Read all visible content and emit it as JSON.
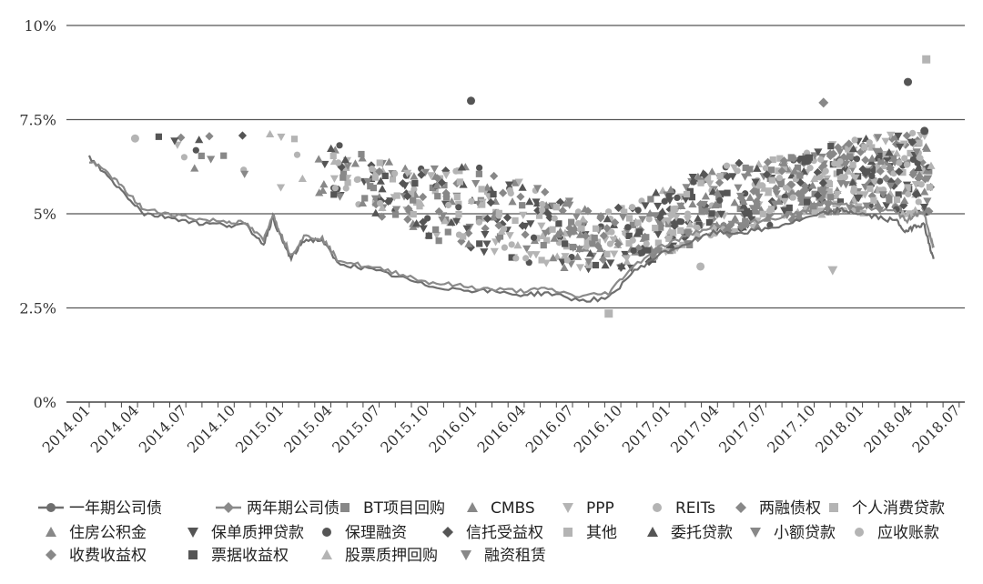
{
  "chart_data": {
    "type": "scatter",
    "title": "",
    "xlabel": "",
    "ylabel": "",
    "ylim": [
      0,
      10
    ],
    "y_ticks": [
      "0%",
      "2.5%",
      "5%",
      "7.5%",
      "10%"
    ],
    "x_ticks": [
      "2014.01",
      "2014.04",
      "2014.07",
      "2014.10",
      "2015.01",
      "2015.04",
      "2015.07",
      "2015.10",
      "2016.01",
      "2016.04",
      "2016.07",
      "2016.10",
      "2017.01",
      "2017.04",
      "2017.07",
      "2017.10",
      "2018.01",
      "2018.04",
      "2018.07"
    ],
    "grid": true,
    "legend_position": "bottom",
    "colors": {
      "dark": "#555555",
      "mid": "#888888",
      "light": "#b4b4b4",
      "line1": "#6e6e6e",
      "line2": "#8a8a8a"
    },
    "line_series": [
      {
        "name": "一年期公司债",
        "marker": "circle",
        "points": [
          [
            2014.0,
            6.5
          ],
          [
            2014.1,
            6.0
          ],
          [
            2014.2,
            5.5
          ],
          [
            2014.3,
            5.0
          ],
          [
            2014.45,
            4.9
          ],
          [
            2014.6,
            4.75
          ],
          [
            2014.75,
            4.7
          ],
          [
            2014.85,
            4.7
          ],
          [
            2014.95,
            4.2
          ],
          [
            2015.0,
            4.9
          ],
          [
            2015.05,
            4.3
          ],
          [
            2015.1,
            3.8
          ],
          [
            2015.17,
            4.3
          ],
          [
            2015.27,
            4.3
          ],
          [
            2015.35,
            3.7
          ],
          [
            2015.5,
            3.55
          ],
          [
            2015.67,
            3.35
          ],
          [
            2015.83,
            3.1
          ],
          [
            2016.0,
            3.0
          ],
          [
            2016.17,
            2.95
          ],
          [
            2016.35,
            2.85
          ],
          [
            2016.5,
            2.9
          ],
          [
            2016.67,
            2.7
          ],
          [
            2016.83,
            2.75
          ],
          [
            2016.95,
            3.4
          ],
          [
            2017.1,
            3.9
          ],
          [
            2017.25,
            4.2
          ],
          [
            2017.4,
            4.5
          ],
          [
            2017.55,
            4.5
          ],
          [
            2017.7,
            4.6
          ],
          [
            2017.85,
            4.8
          ],
          [
            2018.0,
            5.0
          ],
          [
            2018.1,
            5.1
          ],
          [
            2018.2,
            5.0
          ],
          [
            2018.3,
            4.9
          ],
          [
            2018.4,
            4.8
          ],
          [
            2018.45,
            4.5
          ],
          [
            2018.5,
            4.7
          ],
          [
            2018.55,
            4.7
          ],
          [
            2018.58,
            4.1
          ],
          [
            2018.6,
            3.8
          ]
        ]
      },
      {
        "name": "两年期公司债",
        "marker": "diamond",
        "points": [
          [
            2014.0,
            6.4
          ],
          [
            2014.1,
            6.1
          ],
          [
            2014.2,
            5.6
          ],
          [
            2014.3,
            5.1
          ],
          [
            2014.45,
            5.0
          ],
          [
            2014.6,
            4.85
          ],
          [
            2014.75,
            4.8
          ],
          [
            2014.85,
            4.75
          ],
          [
            2014.95,
            4.3
          ],
          [
            2015.0,
            5.0
          ],
          [
            2015.05,
            4.4
          ],
          [
            2015.1,
            3.9
          ],
          [
            2015.17,
            4.4
          ],
          [
            2015.27,
            4.35
          ],
          [
            2015.35,
            3.8
          ],
          [
            2015.5,
            3.6
          ],
          [
            2015.67,
            3.45
          ],
          [
            2015.83,
            3.2
          ],
          [
            2016.0,
            3.1
          ],
          [
            2016.17,
            3.0
          ],
          [
            2016.35,
            2.95
          ],
          [
            2016.5,
            3.0
          ],
          [
            2016.67,
            2.8
          ],
          [
            2016.83,
            2.9
          ],
          [
            2016.95,
            3.55
          ],
          [
            2017.1,
            4.1
          ],
          [
            2017.25,
            4.4
          ],
          [
            2017.4,
            4.7
          ],
          [
            2017.55,
            4.75
          ],
          [
            2017.7,
            4.85
          ],
          [
            2017.85,
            5.0
          ],
          [
            2018.0,
            5.3
          ],
          [
            2018.1,
            5.25
          ],
          [
            2018.2,
            5.2
          ],
          [
            2018.3,
            5.1
          ],
          [
            2018.4,
            5.05
          ],
          [
            2018.45,
            4.8
          ],
          [
            2018.5,
            5.0
          ],
          [
            2018.55,
            5.0
          ],
          [
            2018.58,
            4.4
          ],
          [
            2018.6,
            4.1
          ]
        ]
      }
    ],
    "scatter_series": [
      {
        "name": "BT项目回购",
        "marker": "square",
        "shade": "mid"
      },
      {
        "name": "CMBS",
        "marker": "triangle",
        "shade": "mid"
      },
      {
        "name": "PPP",
        "marker": "triangle-down",
        "shade": "light"
      },
      {
        "name": "REITs",
        "marker": "circle",
        "shade": "light"
      },
      {
        "name": "两融债权",
        "marker": "diamond",
        "shade": "mid"
      },
      {
        "name": "个人消费贷款",
        "marker": "square",
        "shade": "light"
      },
      {
        "name": "住房公积金",
        "marker": "triangle",
        "shade": "mid"
      },
      {
        "name": "保单质押贷款",
        "marker": "triangle-down",
        "shade": "dark"
      },
      {
        "name": "保理融资",
        "marker": "circle",
        "shade": "dark"
      },
      {
        "name": "信托受益权",
        "marker": "diamond",
        "shade": "dark"
      },
      {
        "name": "其他",
        "marker": "square",
        "shade": "light"
      },
      {
        "name": "委托贷款",
        "marker": "triangle",
        "shade": "dark"
      },
      {
        "name": "小额贷款",
        "marker": "triangle-down",
        "shade": "mid"
      },
      {
        "name": "应收账款",
        "marker": "circle",
        "shade": "light"
      },
      {
        "name": "收费收益权",
        "marker": "diamond",
        "shade": "mid"
      },
      {
        "name": "票据收益权",
        "marker": "square",
        "shade": "dark"
      },
      {
        "name": "股票质押回购",
        "marker": "triangle",
        "shade": "light"
      },
      {
        "name": "融资租赁",
        "marker": "triangle-down",
        "shade": "mid"
      }
    ],
    "notable_points": [
      {
        "series": "保理融资",
        "x": 2016.08,
        "y": 8.0
      },
      {
        "series": "保理融资",
        "x": 2018.46,
        "y": 8.5
      },
      {
        "series": "保理融资",
        "x": 2018.55,
        "y": 7.2
      },
      {
        "series": "其他",
        "x": 2018.56,
        "y": 9.1
      },
      {
        "series": "个人消费贷款",
        "x": 2016.83,
        "y": 2.35
      },
      {
        "series": "收费收益权",
        "x": 2018.0,
        "y": 7.95
      },
      {
        "series": "REITs",
        "x": 2014.25,
        "y": 7.0
      },
      {
        "series": "PPP",
        "x": 2018.05,
        "y": 3.5
      },
      {
        "series": "REITs",
        "x": 2017.33,
        "y": 3.6
      }
    ],
    "cluster_envelope": [
      {
        "x": 2014.2,
        "y_low": 6.2,
        "y_high": 7.0
      },
      {
        "x": 2014.9,
        "y_low": 5.8,
        "y_high": 7.2
      },
      {
        "x": 2015.4,
        "y_low": 5.4,
        "y_high": 6.8
      },
      {
        "x": 2015.75,
        "y_low": 4.5,
        "y_high": 6.2
      },
      {
        "x": 2016.1,
        "y_low": 4.0,
        "y_high": 6.3
      },
      {
        "x": 2016.5,
        "y_low": 3.6,
        "y_high": 5.6
      },
      {
        "x": 2016.8,
        "y_low": 3.3,
        "y_high": 5.0
      },
      {
        "x": 2017.1,
        "y_low": 3.8,
        "y_high": 5.6
      },
      {
        "x": 2017.45,
        "y_low": 4.4,
        "y_high": 6.3
      },
      {
        "x": 2017.8,
        "y_low": 4.8,
        "y_high": 6.5
      },
      {
        "x": 2018.15,
        "y_low": 5.0,
        "y_high": 7.0
      },
      {
        "x": 2018.55,
        "y_low": 5.0,
        "y_high": 7.2
      }
    ]
  }
}
